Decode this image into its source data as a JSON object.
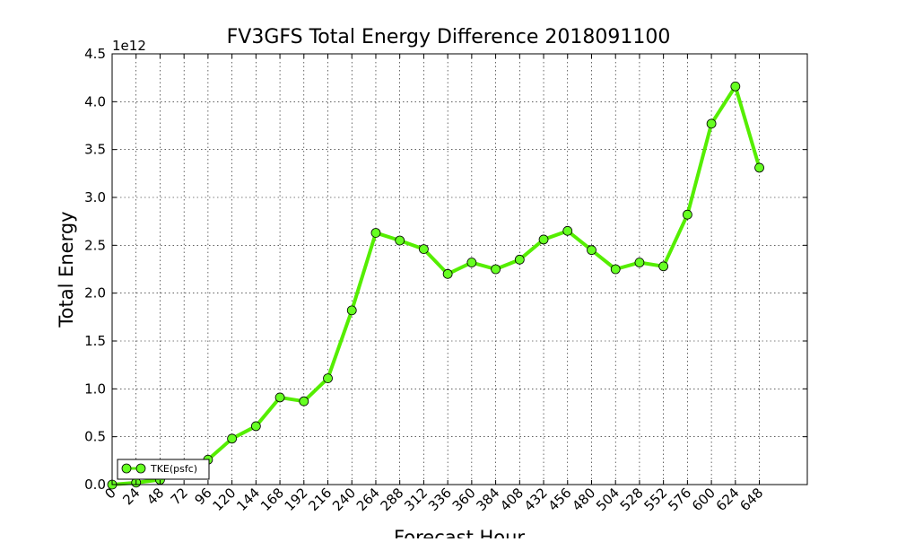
{
  "chart_data": {
    "type": "line",
    "title": "FV3GFS Total Energy Difference 2018091100",
    "xlabel": "Forecast Hour",
    "ylabel": "Total Energy",
    "y_scale_note": "1e12",
    "xlim": [
      0,
      696
    ],
    "ylim": [
      0,
      4.5
    ],
    "x_ticks": [
      0,
      24,
      48,
      72,
      96,
      120,
      144,
      168,
      192,
      216,
      240,
      264,
      288,
      312,
      336,
      360,
      384,
      408,
      432,
      456,
      480,
      504,
      528,
      552,
      576,
      600,
      624,
      648
    ],
    "y_ticks": [
      0.0,
      0.5,
      1.0,
      1.5,
      2.0,
      2.5,
      3.0,
      3.5,
      4.0,
      4.5
    ],
    "grid": true,
    "legend_position": "lower-left",
    "series": [
      {
        "name": "TKE(psfc)",
        "color": "#55ee00",
        "marker_color": "#66ff22",
        "x": [
          0,
          24,
          48,
          72,
          96,
          120,
          144,
          168,
          192,
          216,
          240,
          264,
          288,
          312,
          336,
          360,
          384,
          408,
          432,
          456,
          480,
          504,
          528,
          552,
          576,
          600,
          624,
          648
        ],
        "values": [
          0.0,
          0.02,
          0.05,
          0.15,
          0.26,
          0.48,
          0.61,
          0.91,
          0.87,
          1.11,
          1.82,
          2.63,
          2.55,
          2.46,
          2.2,
          2.32,
          2.25,
          2.35,
          2.56,
          2.65,
          2.45,
          2.25,
          2.32,
          2.28,
          2.82,
          3.77,
          4.16,
          3.31
        ]
      }
    ]
  }
}
